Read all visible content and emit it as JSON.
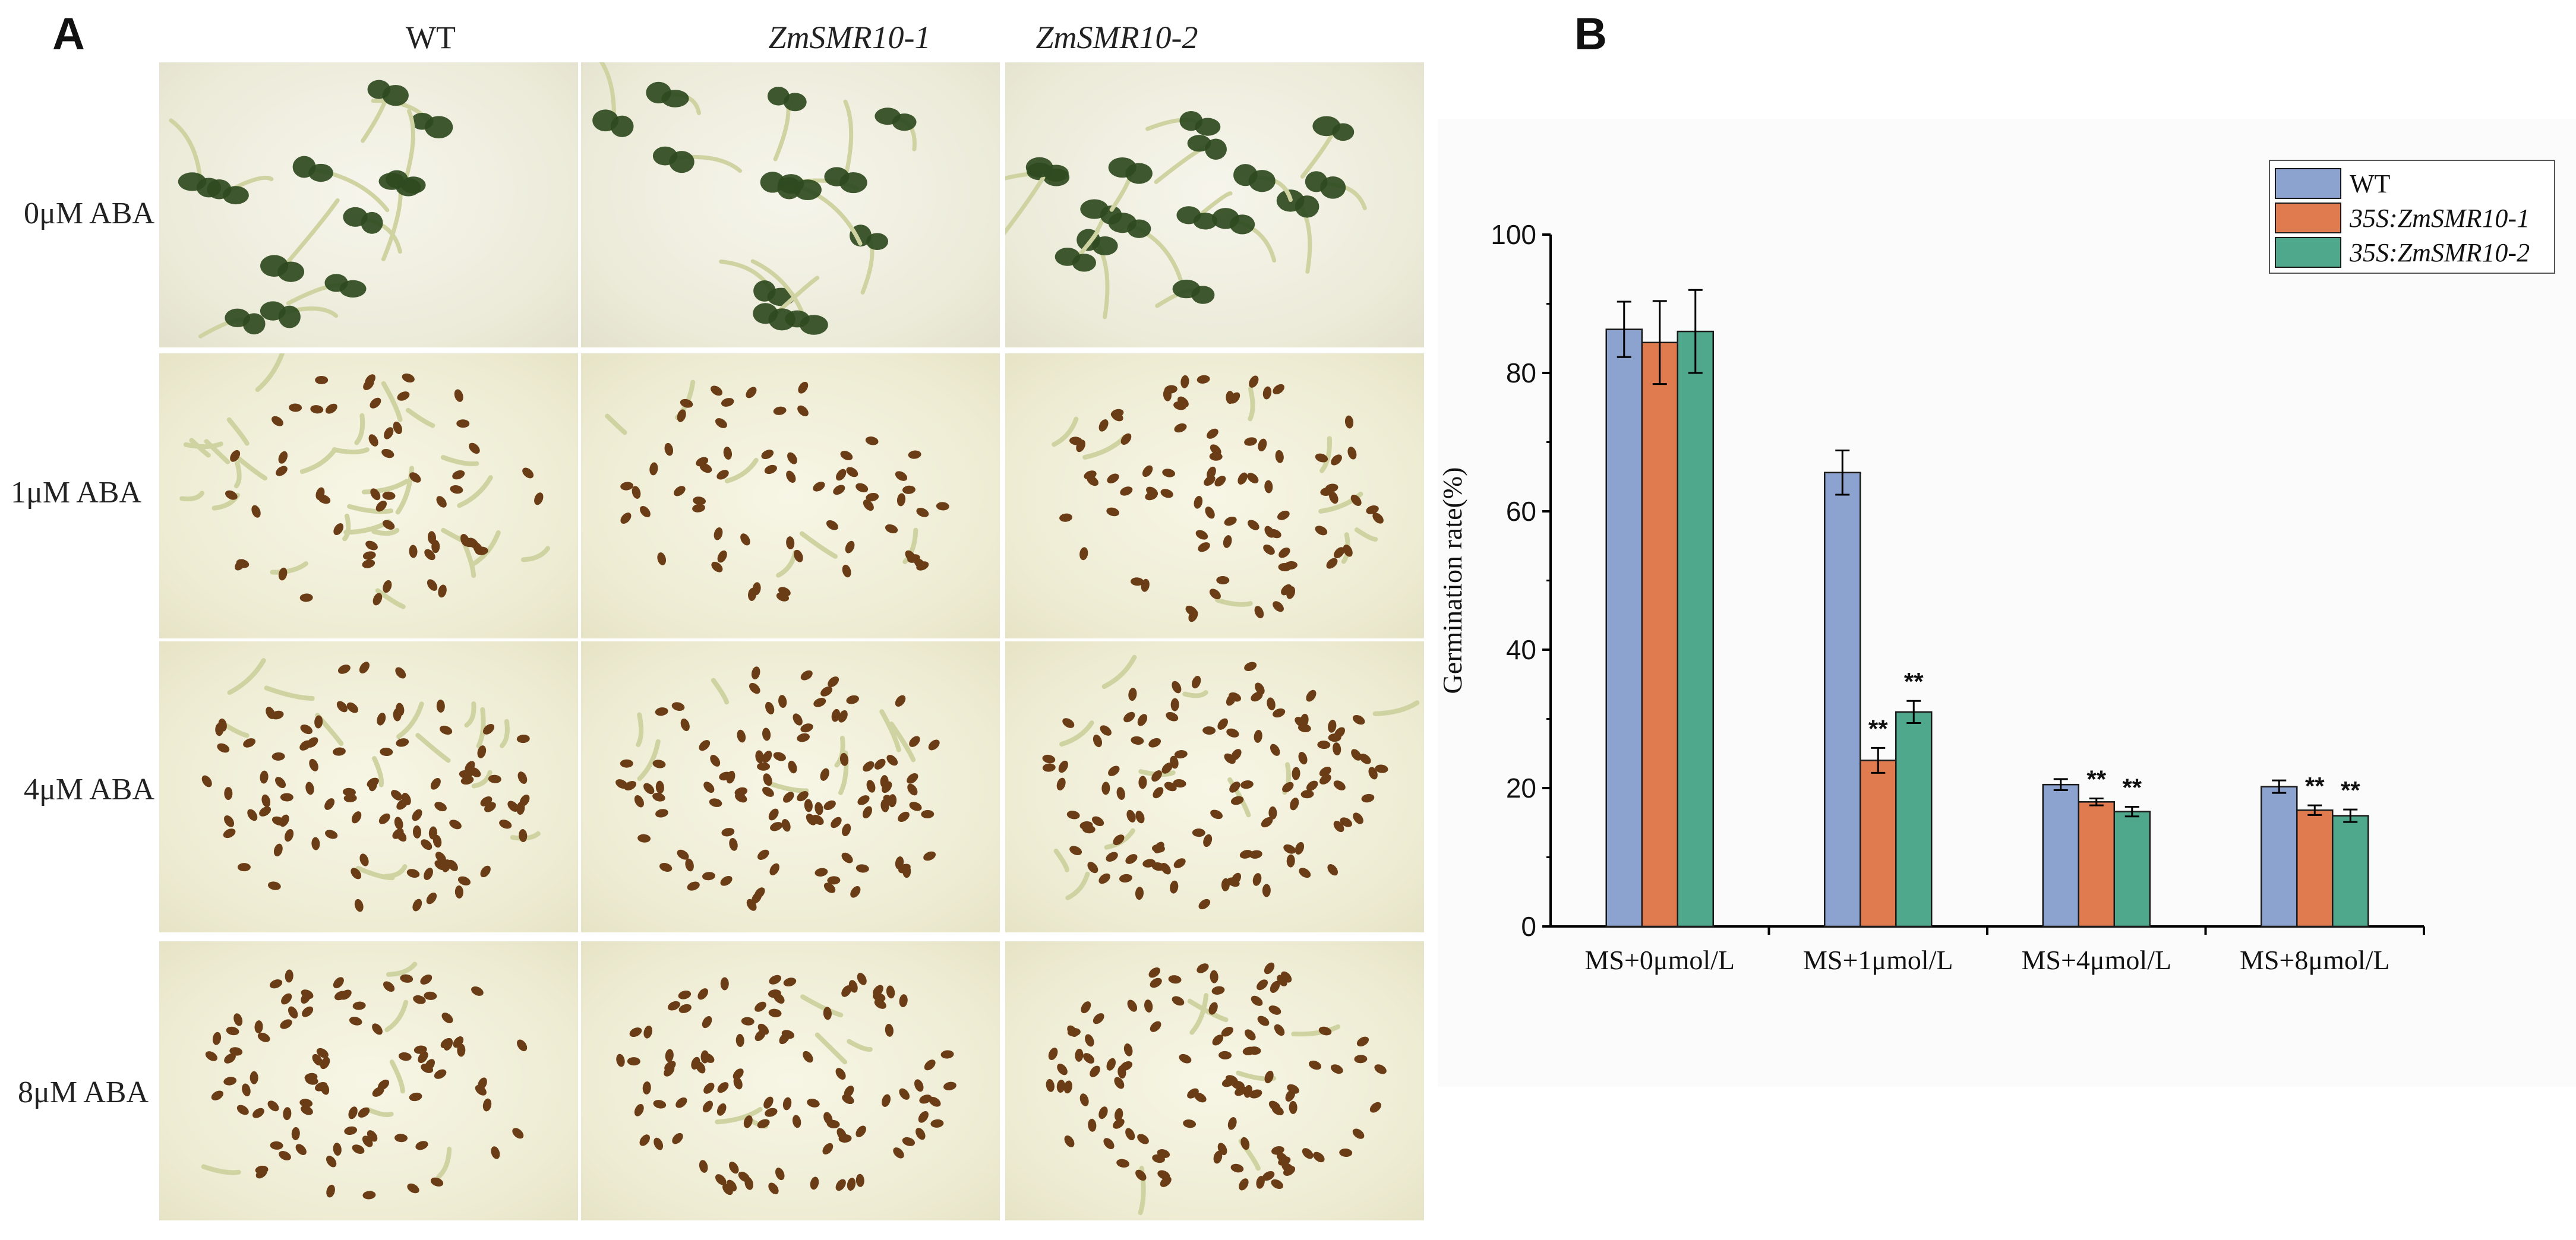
{
  "panel_a": {
    "letter": "A",
    "columns": [
      "WT",
      "ZmSMR10-1",
      "ZmSMR10-2"
    ],
    "rows": [
      "0μM ABA",
      "1μM ABA",
      "4μM ABA",
      "8μM ABA"
    ]
  },
  "panel_b": {
    "letter": "B"
  },
  "colors": {
    "WT": "#8da3cf",
    "35S:ZmSMR10-1": "#e07b50",
    "35S:ZmSMR10-2": "#4fa78c",
    "seed": "#6b3d17",
    "seedling_leaf": "#2f4a1f",
    "hypocotyl": "#cfd3a2"
  },
  "chart_data": {
    "type": "bar",
    "title": "",
    "xlabel": "",
    "ylabel": "Germination rate(%)",
    "ylim": [
      0,
      100
    ],
    "yticks": [
      0,
      20,
      40,
      60,
      80,
      100
    ],
    "categories": [
      "MS+0μmol/L",
      "MS+1μmol/L",
      "MS+4μmol/L",
      "MS+8μmol/L"
    ],
    "series": [
      {
        "name": "WT",
        "values": [
          86.3,
          65.6,
          20.5,
          20.2
        ],
        "errors": [
          4.0,
          3.2,
          0.8,
          0.9
        ],
        "significance": [
          "",
          "",
          "",
          ""
        ]
      },
      {
        "name": "35S:ZmSMR10-1",
        "values": [
          84.4,
          24.0,
          18.0,
          16.8
        ],
        "errors": [
          6.0,
          1.8,
          0.5,
          0.7
        ],
        "significance": [
          "",
          "**",
          "**",
          "**"
        ]
      },
      {
        "name": "35S:ZmSMR10-2",
        "values": [
          86.0,
          31.0,
          16.6,
          16.0
        ],
        "errors": [
          6.0,
          1.6,
          0.7,
          0.9
        ],
        "significance": [
          "",
          "**",
          "**",
          "**"
        ]
      }
    ],
    "legend_position": "top-right",
    "grid": false
  }
}
